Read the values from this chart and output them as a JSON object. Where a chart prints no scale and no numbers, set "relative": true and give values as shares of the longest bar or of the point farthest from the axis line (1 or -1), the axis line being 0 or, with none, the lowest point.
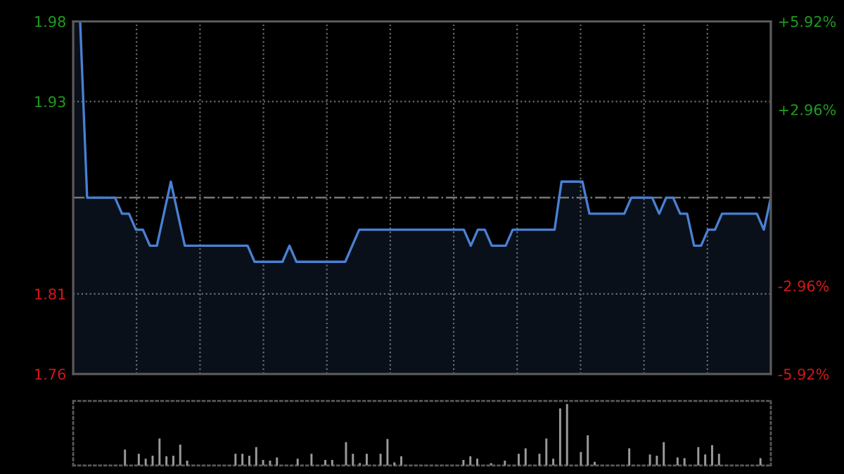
{
  "chart_data": [
    {
      "type": "area",
      "categories": [
        null,
        null,
        null,
        null,
        null,
        null,
        null,
        null,
        null,
        null,
        null,
        null,
        null,
        null,
        null,
        null,
        null,
        null,
        null,
        null,
        null,
        null,
        null,
        null,
        null,
        null,
        null,
        null,
        null,
        null,
        null,
        null,
        null,
        null,
        null,
        null,
        null,
        null,
        null,
        null,
        null,
        null,
        null,
        null,
        null,
        null,
        null,
        null,
        null,
        null,
        null,
        null,
        null,
        null,
        null,
        null,
        null,
        null,
        null,
        null,
        null,
        null,
        null,
        null,
        null,
        null,
        null,
        null,
        null,
        null,
        null,
        null,
        null,
        null,
        null,
        null,
        null,
        null,
        null,
        null,
        null,
        null,
        null,
        null,
        null,
        null,
        null,
        null,
        null,
        null,
        null,
        null,
        null,
        null,
        null,
        null,
        null,
        null,
        null,
        null,
        null
      ],
      "series": [
        {
          "color": "#4a80d4",
          "values": [
            1.98,
            1.98,
            1.87,
            1.87,
            1.87,
            1.87,
            1.87,
            1.86,
            1.86,
            1.85,
            1.85,
            1.84,
            1.84,
            1.86,
            1.88,
            1.86,
            1.84,
            1.84,
            1.84,
            1.84,
            1.84,
            1.84,
            1.84,
            1.84,
            1.84,
            1.84,
            1.83,
            1.83,
            1.83,
            1.83,
            1.83,
            1.84,
            1.83,
            1.83,
            1.83,
            1.83,
            1.83,
            1.83,
            1.83,
            1.83,
            1.84,
            1.85,
            1.85,
            1.85,
            1.85,
            1.85,
            1.85,
            1.85,
            1.85,
            1.85,
            1.85,
            1.85,
            1.85,
            1.85,
            1.85,
            1.85,
            1.85,
            1.84,
            1.85,
            1.85,
            1.84,
            1.84,
            1.84,
            1.85,
            1.85,
            1.85,
            1.85,
            1.85,
            1.85,
            1.85,
            1.88,
            1.88,
            1.88,
            1.88,
            1.86,
            1.86,
            1.86,
            1.86,
            1.86,
            1.86,
            1.87,
            1.87,
            1.87,
            1.87,
            1.86,
            1.87,
            1.87,
            1.86,
            1.86,
            1.84,
            1.84,
            1.85,
            1.85,
            1.86,
            1.86,
            1.86,
            1.86,
            1.86,
            1.86,
            1.85,
            1.87
          ]
        }
      ],
      "ylim": [
        1.76,
        1.98
      ],
      "yticks": [
        1.98,
        1.93,
        1.81,
        1.76
      ],
      "y2lim": [
        -5.92,
        5.92
      ],
      "y2ticks": [
        {
          "value": 5.92,
          "label": "+5.92%"
        },
        {
          "value": 2.96,
          "label": "+2.96%"
        },
        {
          "value": -2.96,
          "label": "-2.96%"
        },
        {
          "value": -5.92,
          "label": "-5.92%"
        }
      ],
      "ref_lines": [
        {
          "axis": "y",
          "value": 1.87,
          "color": "#777777",
          "line_style": "dashdot"
        }
      ],
      "grid": true,
      "marker": "none",
      "line_style": "solid",
      "tick_labels": "y"
    },
    {
      "type": "bar",
      "relative": true,
      "categories": [
        null,
        null,
        null,
        null,
        null,
        null,
        null,
        null,
        null,
        null,
        null,
        null,
        null,
        null,
        null,
        null,
        null,
        null,
        null,
        null,
        null,
        null,
        null,
        null,
        null,
        null,
        null,
        null,
        null,
        null,
        null,
        null,
        null,
        null,
        null,
        null,
        null,
        null,
        null,
        null,
        null,
        null,
        null,
        null,
        null,
        null,
        null,
        null,
        null,
        null,
        null,
        null,
        null,
        null,
        null,
        null,
        null,
        null,
        null,
        null,
        null,
        null,
        null,
        null,
        null,
        null,
        null,
        null,
        null,
        null,
        null,
        null,
        null,
        null,
        null,
        null,
        null,
        null,
        null,
        null,
        null,
        null,
        null,
        null,
        null,
        null,
        null,
        null,
        null,
        null,
        null,
        null,
        null,
        null,
        null,
        null,
        null,
        null,
        null,
        null,
        null
      ],
      "series": [
        {
          "color": "#9a9a9a",
          "values": [
            0,
            0,
            0,
            0,
            0,
            0,
            0,
            0.26,
            0,
            0.19,
            0.11,
            0.16,
            0.44,
            0.15,
            0.16,
            0.34,
            0.08,
            0,
            0,
            0,
            0,
            0,
            0,
            0.19,
            0.19,
            0.16,
            0.3,
            0.09,
            0.08,
            0.13,
            0,
            0,
            0.11,
            0,
            0.19,
            0,
            0.09,
            0.09,
            0,
            0.38,
            0.19,
            0.04,
            0.19,
            0,
            0.19,
            0.43,
            0.05,
            0.15,
            0,
            0,
            0,
            0,
            0,
            0,
            0,
            0,
            0.09,
            0.15,
            0.11,
            0,
            0.04,
            0,
            0.08,
            0,
            0.19,
            0.28,
            0,
            0.19,
            0.44,
            0.11,
            0.93,
            1,
            0,
            0.22,
            0.49,
            0.06,
            0,
            0,
            0,
            0,
            0.28,
            0,
            0,
            0.18,
            0.16,
            0.38,
            0,
            0.13,
            0.12,
            0,
            0.3,
            0.18,
            0.33,
            0.19,
            0,
            0,
            0,
            0,
            0,
            0.12,
            0
          ]
        }
      ],
      "tick_labels": false
    }
  ]
}
